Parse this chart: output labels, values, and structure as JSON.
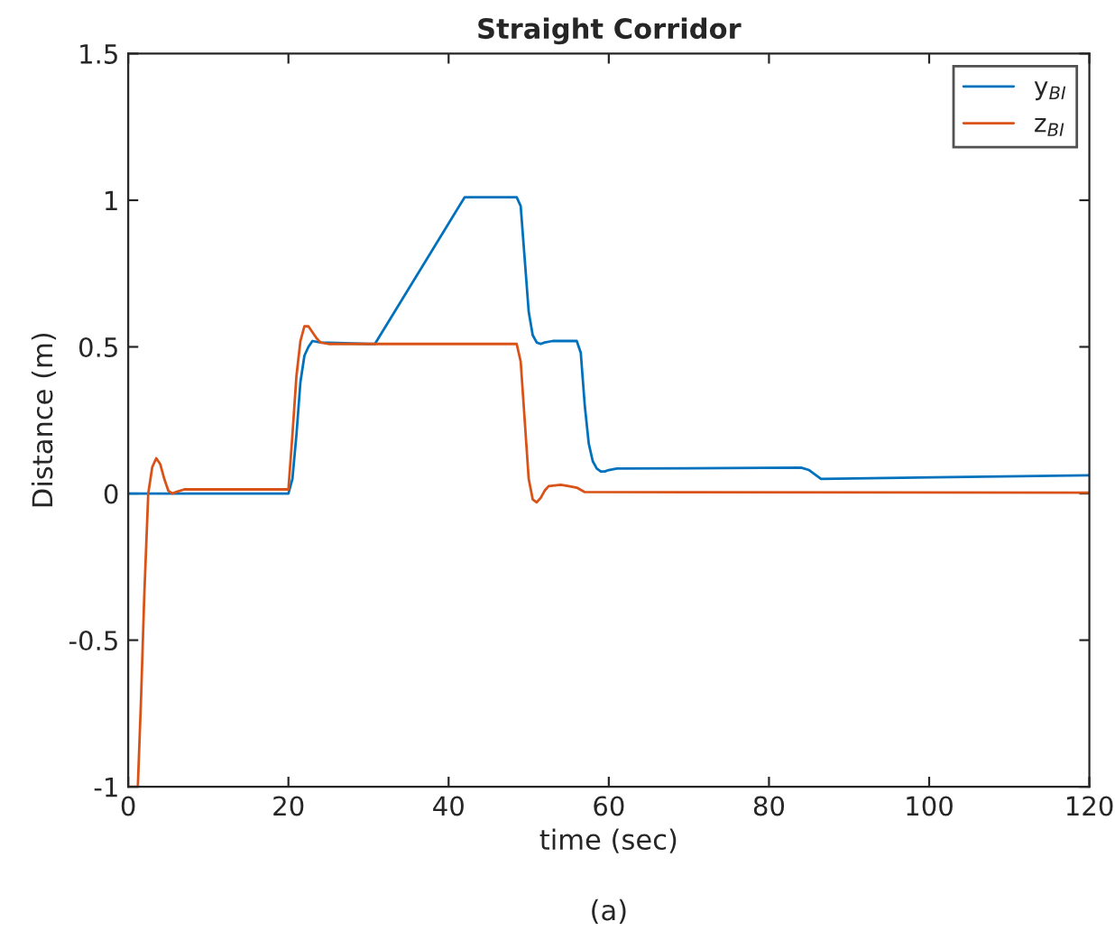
{
  "chart_data": {
    "type": "line",
    "title": "Straight Corridor",
    "xlabel": "time (sec)",
    "ylabel": "Distance (m)",
    "annotations": [
      "(a)"
    ],
    "xlim": [
      0,
      120
    ],
    "ylim": [
      -1,
      1.5
    ],
    "xticks": [
      0,
      20,
      40,
      60,
      80,
      100,
      120
    ],
    "yticks": [
      -1,
      -0.5,
      0,
      0.5,
      1,
      1.5
    ],
    "grid": false,
    "legend": "top right",
    "marker": "none",
    "line_style": "solid",
    "series": [
      {
        "name": "y$_{BI}$",
        "color": "#0072bd",
        "x": [
          0,
          20,
          20.5,
          21,
          21.5,
          22,
          22.5,
          23,
          24,
          30,
          30.8,
          42,
          48.5,
          49,
          49.5,
          50,
          50.5,
          51,
          51.5,
          52,
          53,
          56,
          56.5,
          57,
          57.5,
          58,
          58.5,
          59,
          59.5,
          60,
          61,
          84,
          85,
          86,
          86.5,
          120
        ],
        "values": [
          0,
          0,
          0.05,
          0.2,
          0.38,
          0.47,
          0.5,
          0.52,
          0.515,
          0.51,
          0.51,
          1.01,
          1.01,
          0.98,
          0.8,
          0.62,
          0.54,
          0.515,
          0.51,
          0.515,
          0.52,
          0.52,
          0.48,
          0.3,
          0.17,
          0.11,
          0.085,
          0.075,
          0.075,
          0.08,
          0.085,
          0.088,
          0.08,
          0.06,
          0.05,
          0.062
        ]
      },
      {
        "name": "z$_{BI}$",
        "color": "#d95319",
        "x": [
          0,
          1.2,
          1.6,
          2,
          2.5,
          3,
          3.5,
          4,
          4.5,
          5,
          5.5,
          6,
          7,
          20,
          20.5,
          21,
          21.5,
          22,
          22.5,
          23,
          23.5,
          24,
          25,
          26,
          48.5,
          49,
          49.5,
          50,
          50.5,
          51,
          51.5,
          52,
          52.5,
          54,
          55,
          56,
          57,
          120
        ],
        "values": [
          -1,
          -1,
          -0.7,
          -0.35,
          0,
          0.09,
          0.12,
          0.1,
          0.05,
          0.01,
          0.0,
          0.005,
          0.014,
          0.014,
          0.2,
          0.4,
          0.52,
          0.57,
          0.57,
          0.55,
          0.53,
          0.515,
          0.51,
          0.51,
          0.51,
          0.45,
          0.25,
          0.05,
          -0.02,
          -0.03,
          -0.015,
          0.01,
          0.025,
          0.03,
          0.025,
          0.02,
          0.005,
          0.003
        ]
      }
    ]
  }
}
